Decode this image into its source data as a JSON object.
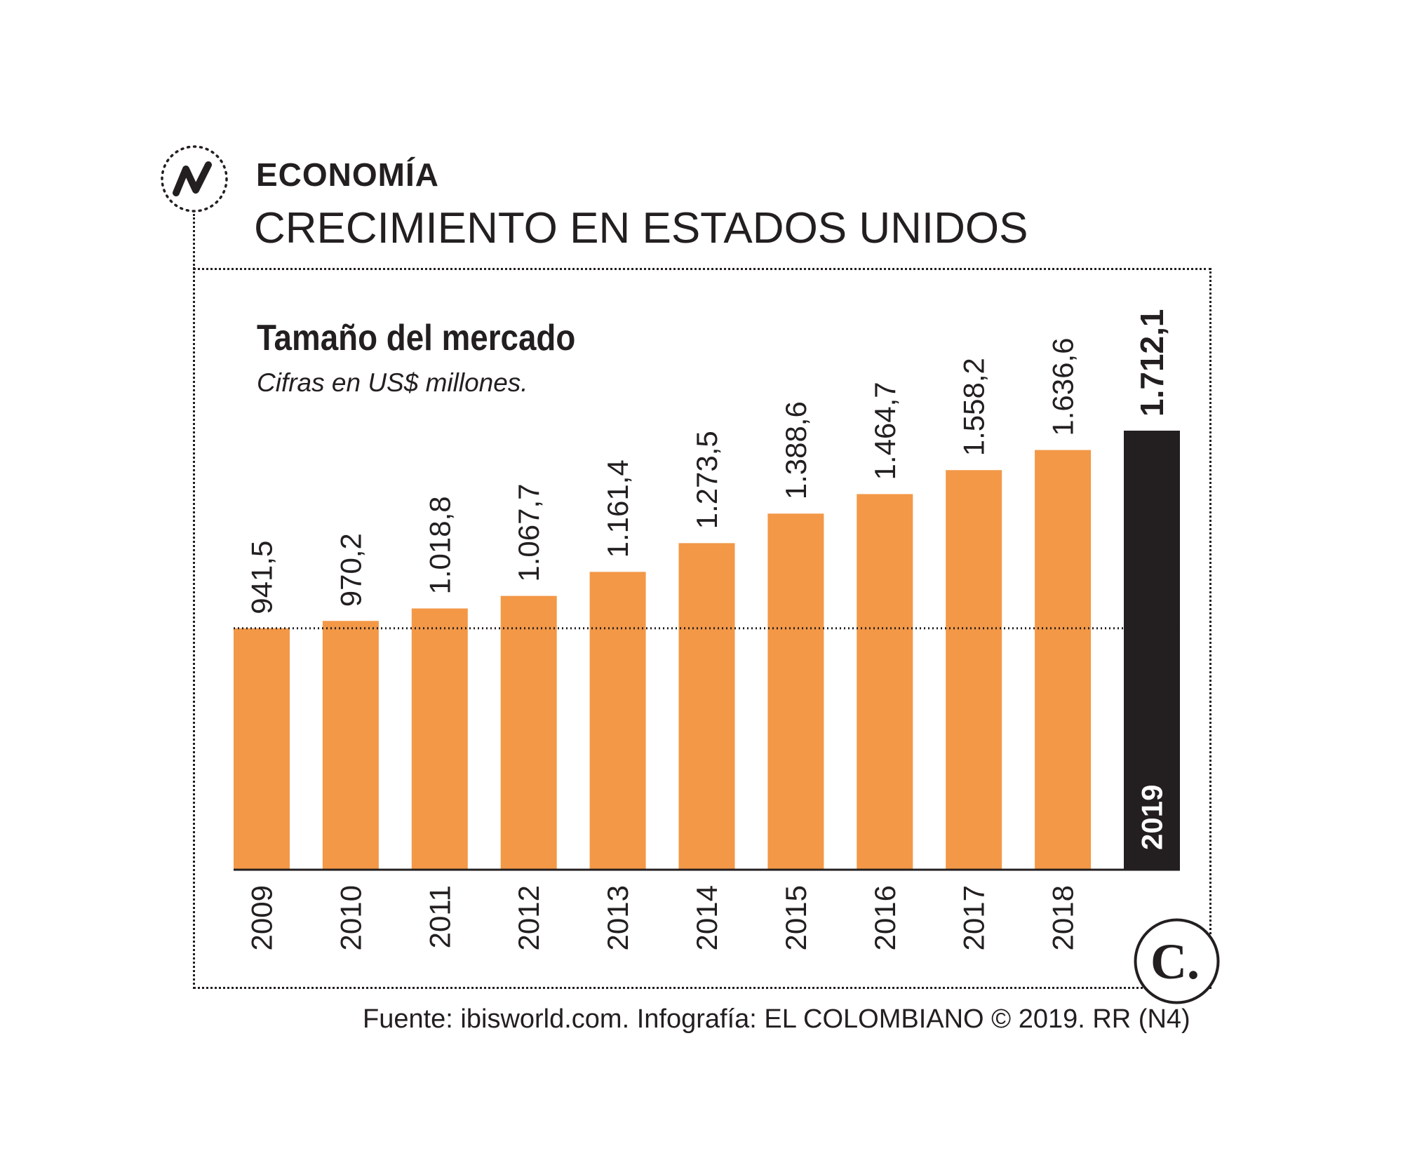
{
  "header": {
    "section": "ECONOMÍA",
    "headline": "CRECIMIENTO EN ESTADOS UNIDOS"
  },
  "icons": {
    "section_icon": "trend-line-icon",
    "logo": "el-colombiano-logo",
    "logo_text": "C."
  },
  "colors": {
    "bar": "#f39847",
    "highlight_bar": "#231f20",
    "text": "#231f20",
    "highlight_label_text": "#ffffff"
  },
  "chart_data": {
    "type": "bar",
    "title": "Tamaño del mercado",
    "subtitle": "Cifras en US$ millones.",
    "xlabel": "",
    "ylabel": "",
    "categories": [
      "2009",
      "2010",
      "2011",
      "2012",
      "2013",
      "2014",
      "2015",
      "2016",
      "2017",
      "2018",
      "2019"
    ],
    "values": [
      941.5,
      970.2,
      1018.8,
      1067.7,
      1161.4,
      1273.5,
      1388.6,
      1464.7,
      1558.2,
      1636.6,
      1712.1
    ],
    "value_labels": [
      "941,5",
      "970,2",
      "1.018,8",
      "1.067,7",
      "1.161,4",
      "1.273,5",
      "1.388,6",
      "1.464,7",
      "1.558,2",
      "1.636,6",
      "1.712,1"
    ],
    "highlight_category": "2019",
    "reference_line_value": 941.5,
    "ylim": [
      0,
      1712.1
    ],
    "grid": false,
    "legend": "none"
  },
  "footer": {
    "source": "Fuente: ibisworld.com. Infografía: EL COLOMBIANO © 2019. RR (N4)"
  }
}
